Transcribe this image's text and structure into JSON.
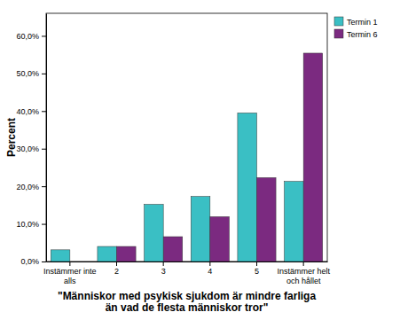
{
  "chart_data": {
    "type": "bar",
    "x_label": "\"Människor med psykisk sjukdom är mindre farliga än vad de flesta människor tror\"",
    "y_label": "Percent",
    "categories": [
      "Instämmer inte alls",
      "2",
      "3",
      "4",
      "5",
      "Instämmer helt och hållet"
    ],
    "series": [
      {
        "name": "Termin 1",
        "color": "#3abfc4",
        "values": [
          3.1,
          4.0,
          15.2,
          17.3,
          39.5,
          21.3
        ]
      },
      {
        "name": "Termin 6",
        "color": "#7b2a80",
        "values": [
          0,
          4.0,
          6.6,
          11.9,
          22.3,
          55.4
        ]
      }
    ],
    "ylim": [
      0,
      66
    ],
    "yticks": [
      {
        "value": 0,
        "label": "0,0%"
      },
      {
        "value": 10,
        "label": "10,0%"
      },
      {
        "value": 20,
        "label": "20,0%"
      },
      {
        "value": 30,
        "label": "30,0%"
      },
      {
        "value": 40,
        "label": "40,0%"
      },
      {
        "value": 50,
        "label": "50,0%"
      },
      {
        "value": 60,
        "label": "60,0%"
      }
    ],
    "grid": false,
    "legend": "right"
  }
}
